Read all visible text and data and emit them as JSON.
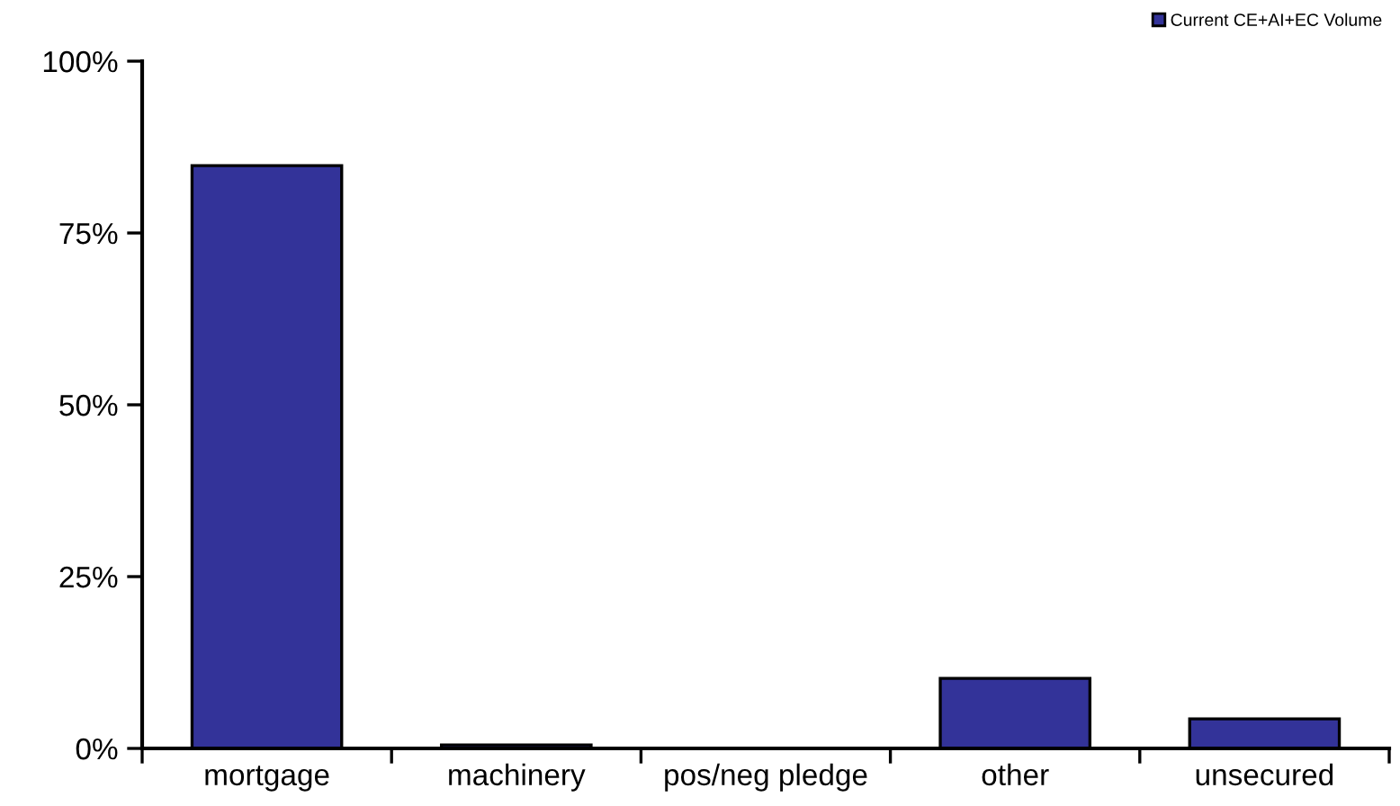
{
  "chart_data": {
    "type": "bar",
    "categories": [
      "mortgage",
      "machinery",
      "pos/neg pledge",
      "other",
      "unsecured"
    ],
    "series": [
      {
        "name": "Current CE+AI+EC Volume",
        "color": "#333399",
        "values": [
          84.8,
          0.5,
          0,
          10.2,
          4.3
        ]
      }
    ],
    "ylim": [
      0,
      100
    ],
    "yticks": [
      {
        "value": 0,
        "label": "0%"
      },
      {
        "value": 25,
        "label": "25%"
      },
      {
        "value": 50,
        "label": "50%"
      },
      {
        "value": 75,
        "label": "75%"
      },
      {
        "value": 100,
        "label": "100%"
      }
    ],
    "grid": false,
    "legend": "top right"
  }
}
